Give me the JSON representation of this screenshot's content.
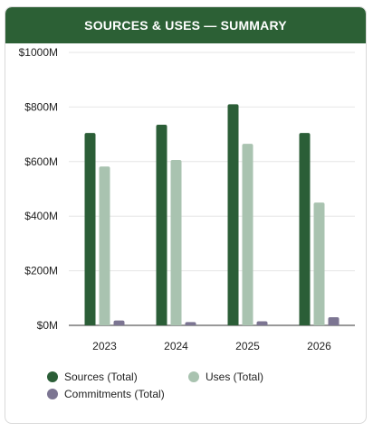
{
  "header": {
    "title": "SOURCES & USES — SUMMARY"
  },
  "colors": {
    "sources": "#2b5e37",
    "uses": "#a9c3b0",
    "commitments": "#7c7592",
    "header_bg": "#2c6035"
  },
  "chart_data": {
    "type": "bar",
    "categories": [
      "2023",
      "2024",
      "2025",
      "2026"
    ],
    "series": [
      {
        "name": "Sources (Total)",
        "values": [
          705,
          735,
          810,
          705
        ]
      },
      {
        "name": "Uses (Total)",
        "values": [
          582,
          606,
          665,
          450
        ]
      },
      {
        "name": "Commitments (Total)",
        "values": [
          18,
          12,
          15,
          30
        ]
      }
    ],
    "ylim": [
      0,
      1000
    ],
    "yticks": [
      0,
      200,
      400,
      600,
      800,
      1000
    ],
    "ytick_labels": [
      "$0M",
      "$200M",
      "$400M",
      "$600M",
      "$800M",
      "$1000M"
    ],
    "grid": true,
    "legend_position": "bottom-left"
  }
}
